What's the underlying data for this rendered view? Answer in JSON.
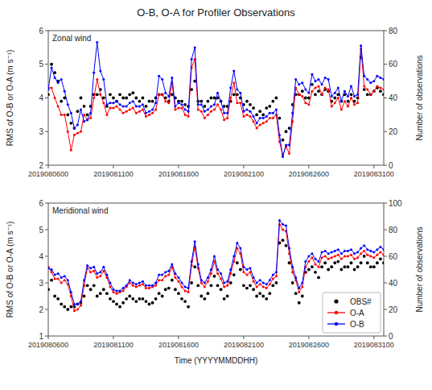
{
  "chart_data": [
    {
      "type": "line",
      "title": "O-B, O-A for Profiler Observations",
      "annotations": [
        "Zonal wind"
      ],
      "ylabel": "RMS of O-B or O-A (m s⁻¹)",
      "y2label": "Number of observations",
      "xlim": [
        0,
        103
      ],
      "categories": [
        "2019080600",
        null,
        null,
        null,
        null,
        null,
        null,
        null,
        null,
        null,
        null,
        null,
        null,
        null,
        null,
        null,
        null,
        null,
        null,
        null,
        "2019081100",
        null,
        null,
        null,
        null,
        null,
        null,
        null,
        null,
        null,
        null,
        null,
        null,
        null,
        null,
        null,
        null,
        null,
        null,
        null,
        "2019081600",
        null,
        null,
        null,
        null,
        null,
        null,
        null,
        null,
        null,
        null,
        null,
        null,
        null,
        null,
        null,
        null,
        null,
        null,
        null,
        "2019082100",
        null,
        null,
        null,
        null,
        null,
        null,
        null,
        null,
        null,
        null,
        null,
        null,
        null,
        null,
        null,
        null,
        null,
        null,
        null,
        "2019082600",
        null,
        null,
        null,
        null,
        null,
        null,
        null,
        null,
        null,
        null,
        null,
        null,
        null,
        null,
        null,
        null,
        null,
        null,
        null,
        "2019083100",
        null,
        null,
        null
      ],
      "ylim": [
        2,
        6
      ],
      "yticks": [
        2,
        3,
        4,
        5,
        6
      ],
      "y2lim": [
        0,
        80
      ],
      "y2ticks": [
        0,
        20,
        40,
        60,
        80
      ],
      "grid": false,
      "series": [
        {
          "type": "scatter",
          "axis": "y2",
          "color": "black",
          "marker": "circle",
          "values": [
            42,
            60,
            55,
            50,
            38,
            40,
            30,
            25,
            22,
            32,
            40,
            35,
            30,
            35,
            42,
            42,
            45,
            40,
            35,
            42,
            40,
            38,
            42,
            40,
            40,
            42,
            43,
            40,
            38,
            40,
            35,
            38,
            38,
            40,
            42,
            42,
            40,
            38,
            42,
            40,
            38,
            38,
            36,
            35,
            45,
            50,
            38,
            38,
            35,
            38,
            40,
            40,
            40,
            38,
            35,
            35,
            38,
            42,
            42,
            40,
            36,
            38,
            36,
            34,
            30,
            32,
            30,
            34,
            35,
            38,
            40,
            28,
            15,
            20,
            22,
            36,
            42,
            42,
            44,
            40,
            40,
            48,
            42,
            44,
            42,
            45,
            44,
            38,
            40,
            42,
            38,
            42,
            38,
            42,
            38,
            40,
            64,
            45,
            42,
            42,
            44,
            46,
            44,
            42
          ]
        },
        {
          "type": "line",
          "color": "#FF0000",
          "marker": "circle",
          "values": [
            4.3,
            4.3,
            4.0,
            3.75,
            3.5,
            3.5,
            3.0,
            2.45,
            2.9,
            2.95,
            3.0,
            3.5,
            3.35,
            3.4,
            4.0,
            4.55,
            4.1,
            3.85,
            3.5,
            3.7,
            3.7,
            3.75,
            3.65,
            3.55,
            3.6,
            3.65,
            3.7,
            3.55,
            3.6,
            3.65,
            3.45,
            3.5,
            3.55,
            3.65,
            4.1,
            4.1,
            3.9,
            3.85,
            4.45,
            3.65,
            3.7,
            3.7,
            3.5,
            3.45,
            4.9,
            5.15,
            3.65,
            3.6,
            3.4,
            3.5,
            3.6,
            3.65,
            3.8,
            3.65,
            3.35,
            3.4,
            4.0,
            4.45,
            3.85,
            3.85,
            3.45,
            3.5,
            3.45,
            3.3,
            3.1,
            3.2,
            3.25,
            3.3,
            3.4,
            3.4,
            3.5,
            2.7,
            2.3,
            2.55,
            2.35,
            3.3,
            4.3,
            4.1,
            4.05,
            3.85,
            3.8,
            4.2,
            4.3,
            4.35,
            4.1,
            4.3,
            4.25,
            3.75,
            3.85,
            4.0,
            3.65,
            3.9,
            3.75,
            4.0,
            3.8,
            3.85,
            5.45,
            4.35,
            4.25,
            4.1,
            4.2,
            4.35,
            4.3,
            4.25
          ]
        },
        {
          "type": "line",
          "color": "#0000FF",
          "marker": "circle",
          "values": [
            4.25,
            4.9,
            4.6,
            4.45,
            4.55,
            4.2,
            3.8,
            3.55,
            3.1,
            3.2,
            3.65,
            3.3,
            3.35,
            3.55,
            4.75,
            5.65,
            4.8,
            4.55,
            3.8,
            3.85,
            3.85,
            3.9,
            3.8,
            3.75,
            3.75,
            3.85,
            3.9,
            3.75,
            3.75,
            3.8,
            3.55,
            3.6,
            3.65,
            3.85,
            4.65,
            4.55,
            4.15,
            4.05,
            4.6,
            3.75,
            3.85,
            3.8,
            3.65,
            3.6,
            5.15,
            5.5,
            3.8,
            3.8,
            3.6,
            3.65,
            3.75,
            3.8,
            4.15,
            3.9,
            3.55,
            3.55,
            4.3,
            4.8,
            4.25,
            4.15,
            3.6,
            3.65,
            3.6,
            3.45,
            3.25,
            3.4,
            3.4,
            3.45,
            3.55,
            3.55,
            3.65,
            2.9,
            2.25,
            2.6,
            2.6,
            3.55,
            4.55,
            4.4,
            4.45,
            4.25,
            4.15,
            4.7,
            4.5,
            4.55,
            4.4,
            4.6,
            4.55,
            4.05,
            4.15,
            4.3,
            3.9,
            4.2,
            4.05,
            4.35,
            4.05,
            4.1,
            5.55,
            4.65,
            4.55,
            4.45,
            4.5,
            4.65,
            4.6,
            4.55
          ]
        }
      ]
    },
    {
      "type": "line",
      "annotations": [
        "Meridional wind"
      ],
      "xlabel": "Time (YYYYMMDDHH)",
      "ylabel": "RMS of O-B or O-A (m s⁻¹)",
      "y2label": "Number of observations",
      "xlim": [
        0,
        103
      ],
      "categories": [
        "2019080600",
        null,
        null,
        null,
        null,
        null,
        null,
        null,
        null,
        null,
        null,
        null,
        null,
        null,
        null,
        null,
        null,
        null,
        null,
        null,
        "2019081100",
        null,
        null,
        null,
        null,
        null,
        null,
        null,
        null,
        null,
        null,
        null,
        null,
        null,
        null,
        null,
        null,
        null,
        null,
        null,
        "2019081600",
        null,
        null,
        null,
        null,
        null,
        null,
        null,
        null,
        null,
        null,
        null,
        null,
        null,
        null,
        null,
        null,
        null,
        null,
        null,
        "2019082100",
        null,
        null,
        null,
        null,
        null,
        null,
        null,
        null,
        null,
        null,
        null,
        null,
        null,
        null,
        null,
        null,
        null,
        null,
        null,
        "2019082600",
        null,
        null,
        null,
        null,
        null,
        null,
        null,
        null,
        null,
        null,
        null,
        null,
        null,
        null,
        null,
        null,
        null,
        null,
        null,
        "2019083100",
        null,
        null,
        null
      ],
      "ylim": [
        1,
        6
      ],
      "yticks": [
        1,
        2,
        3,
        4,
        5,
        6
      ],
      "y2lim": [
        0,
        100
      ],
      "y2ticks": [
        0,
        20,
        40,
        60,
        80,
        100
      ],
      "grid": false,
      "legend": "lower right",
      "series": [
        {
          "name": "OBS#",
          "type": "scatter",
          "axis": "y2",
          "color": "black",
          "marker": "circle",
          "values": [
            35,
            42,
            30,
            28,
            24,
            22,
            20,
            22,
            22,
            24,
            25,
            30,
            38,
            35,
            38,
            30,
            32,
            35,
            32,
            28,
            26,
            24,
            22,
            25,
            28,
            30,
            28,
            26,
            28,
            28,
            26,
            24,
            25,
            28,
            32,
            30,
            35,
            36,
            42,
            35,
            32,
            28,
            26,
            22,
            40,
            52,
            38,
            30,
            28,
            32,
            38,
            45,
            38,
            35,
            28,
            30,
            40,
            46,
            55,
            50,
            38,
            36,
            38,
            35,
            30,
            32,
            30,
            28,
            32,
            38,
            40,
            70,
            72,
            68,
            55,
            40,
            32,
            25,
            30,
            48,
            50,
            52,
            48,
            44,
            52,
            55,
            50,
            52,
            55,
            56,
            50,
            52,
            52,
            55,
            50,
            52,
            55,
            60,
            55,
            52,
            52,
            55,
            58,
            55
          ]
        },
        {
          "name": "O-A",
          "type": "line",
          "color": "#FF0000",
          "marker": "circle",
          "values": [
            3.6,
            3.4,
            3.15,
            3.15,
            3.0,
            3.1,
            2.95,
            2.5,
            1.95,
            2.0,
            2.15,
            2.9,
            3.55,
            3.4,
            3.45,
            3.2,
            3.25,
            3.45,
            3.2,
            2.85,
            2.65,
            2.6,
            2.65,
            2.7,
            2.85,
            3.0,
            2.9,
            2.85,
            2.9,
            2.95,
            2.8,
            2.8,
            2.85,
            2.9,
            3.1,
            3.1,
            3.25,
            3.3,
            3.6,
            3.2,
            3.05,
            2.85,
            2.7,
            2.65,
            3.65,
            4.35,
            3.55,
            3.0,
            2.85,
            3.05,
            3.35,
            3.8,
            3.35,
            3.15,
            2.85,
            2.9,
            3.35,
            3.8,
            4.3,
            4.1,
            3.4,
            3.3,
            3.4,
            3.05,
            2.85,
            2.95,
            2.85,
            2.8,
            2.95,
            3.15,
            3.25,
            5.2,
            5.0,
            4.95,
            4.1,
            3.4,
            3.1,
            2.65,
            2.85,
            3.6,
            3.8,
            3.95,
            3.7,
            3.6,
            3.95,
            4.0,
            3.9,
            3.95,
            4.0,
            4.05,
            3.9,
            4.0,
            4.0,
            4.05,
            3.9,
            3.95,
            4.1,
            4.2,
            4.05,
            4.0,
            3.95,
            4.05,
            4.15,
            4.05
          ]
        },
        {
          "name": "O-B",
          "type": "line",
          "color": "#0000FF",
          "marker": "circle",
          "values": [
            3.55,
            3.5,
            3.3,
            3.35,
            3.2,
            3.25,
            3.1,
            2.65,
            2.2,
            2.2,
            2.3,
            3.1,
            3.65,
            3.55,
            3.6,
            3.35,
            3.4,
            3.6,
            3.3,
            3.0,
            2.75,
            2.7,
            2.7,
            2.8,
            2.9,
            3.1,
            3.0,
            2.95,
            3.0,
            3.05,
            2.9,
            2.9,
            2.9,
            3.0,
            3.3,
            3.3,
            3.4,
            3.45,
            3.7,
            3.35,
            3.2,
            3.0,
            2.85,
            2.8,
            3.8,
            4.55,
            3.7,
            3.1,
            3.0,
            3.2,
            3.5,
            4.0,
            3.5,
            3.35,
            3.0,
            3.05,
            3.5,
            4.0,
            4.5,
            4.3,
            3.6,
            3.5,
            3.55,
            3.2,
            3.0,
            3.1,
            3.0,
            2.95,
            3.1,
            3.3,
            3.4,
            5.35,
            5.2,
            5.15,
            4.3,
            3.6,
            3.2,
            2.8,
            3.0,
            3.8,
            4.0,
            4.1,
            3.9,
            3.8,
            4.15,
            4.2,
            4.1,
            4.15,
            4.2,
            4.25,
            4.1,
            4.2,
            4.2,
            4.25,
            4.1,
            4.15,
            4.3,
            4.4,
            4.25,
            4.2,
            4.15,
            4.25,
            4.35,
            4.25
          ]
        }
      ]
    }
  ]
}
